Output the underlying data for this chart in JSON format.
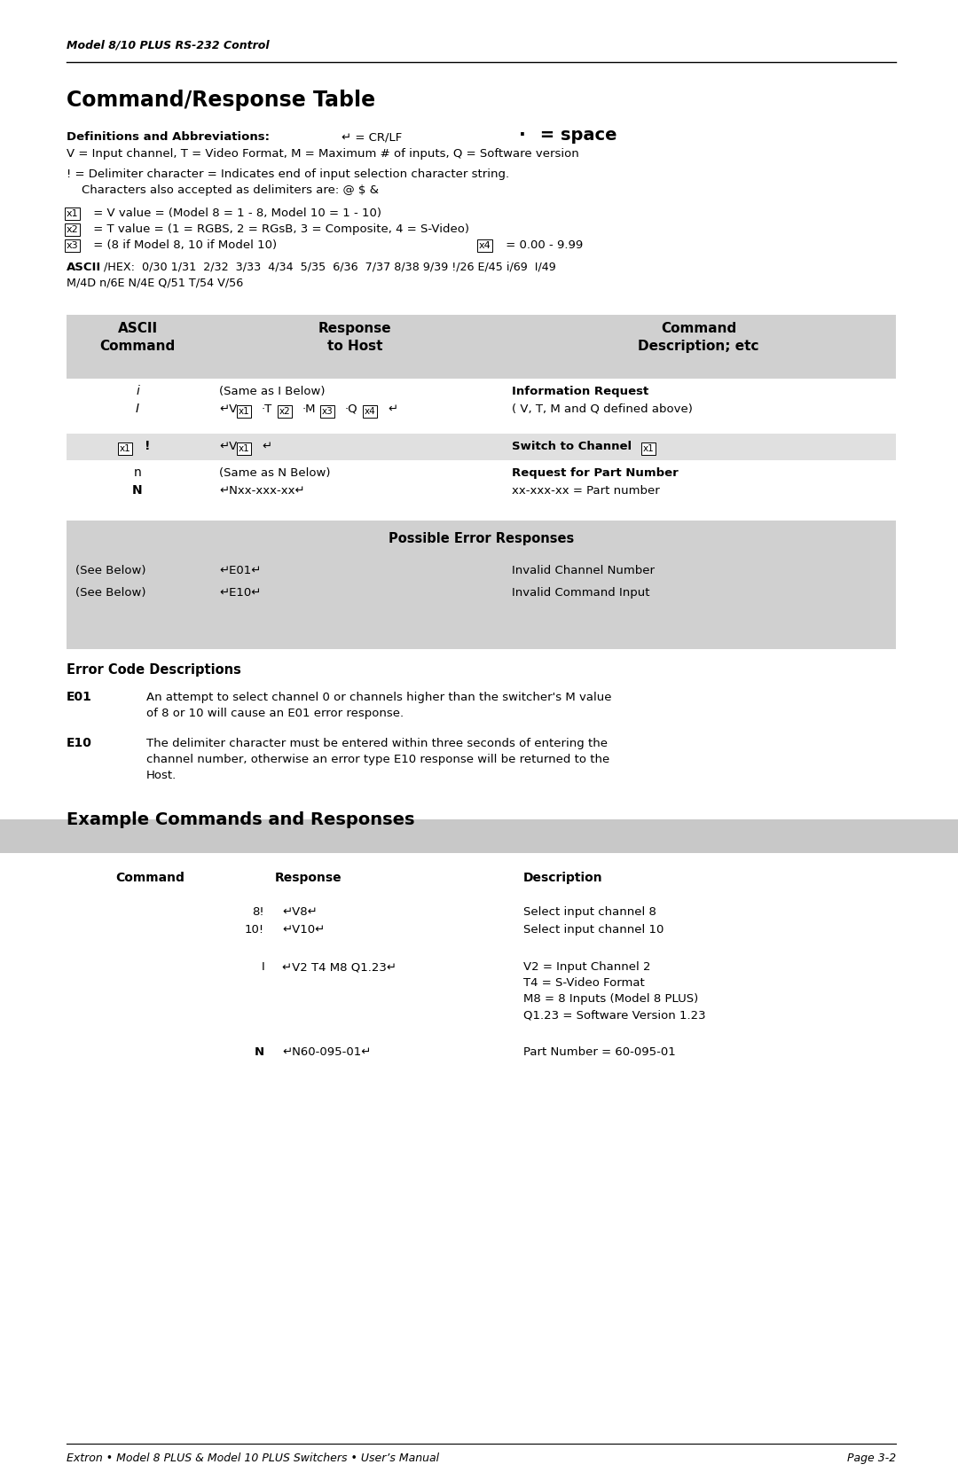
{
  "header": "Model 8/10 PLUS RS-232 Control",
  "title1": "Command/Response Table",
  "def_label": "Definitions and Abbreviations:",
  "def_cr": "↵ = CR/LF",
  "def_space_dot": "·",
  "def_space_text": " = space",
  "def_v": "V = Input channel, T = Video Format, M = Maximum # of inputs, Q = Software version",
  "def_delim1": "! = Delimiter character = Indicates end of input selection character string.",
  "def_delim2": "    Characters also accepted as delimiters are: @ $ &",
  "def_x1": " = V value = (Model 8 = 1 - 8, Model 10 = 1 - 10)",
  "def_x2": " = T value = (1 = RGBS, 2 = RGsB, 3 = Composite, 4 = S-Video)",
  "def_x3": " = (8 if Model 8, 10 if Model 10)",
  "def_x4": " = 0.00 - 9.99",
  "ascii_bold": "ASCII",
  "ascii_rest": "/HEX:  0/30 1/31  2/32  3/33  4/34  5/35  6/36  7/37 8/38 9/39 !/26 E/45 i/69  I/49",
  "ascii_line2": "M/4D n/6E N/4E Q/51 T/54 V/56",
  "tbl_h1": "ASCII\nCommand",
  "tbl_h2": "Response\nto Host",
  "tbl_h3": "Command\nDescription; etc",
  "err_title": "Possible Error Responses",
  "err_r1c1": "(See Below)",
  "err_r1c2": "↵E01↵",
  "err_r1c3": "Invalid Channel Number",
  "err_r2c1": "(See Below)",
  "err_r2c2": "↵E10↵",
  "err_r2c3": "Invalid Command Input",
  "ecd_title": "Error Code Descriptions",
  "e01": "E01",
  "e01_text1": "An attempt to select channel 0 or channels higher than the switcher's M value",
  "e01_text2": "of 8 or 10 will cause an E01 error response.",
  "e10": "E10",
  "e10_text1": "The delimiter character must be entered within three seconds of entering the",
  "e10_text2": "channel number, otherwise an error type E10 response will be returned to the",
  "e10_text3": "Host.",
  "title2": "Example Commands and Responses",
  "ex_h1": "Command",
  "ex_h2": "Response",
  "ex_h3": "Description",
  "footer_left": "Extron • Model 8 PLUS & Model 10 PLUS Switchers • User’s Manual",
  "footer_right": "Page 3-2",
  "gray1": "#d0d0d0",
  "gray2": "#e0e0e0",
  "white": "#ffffff"
}
